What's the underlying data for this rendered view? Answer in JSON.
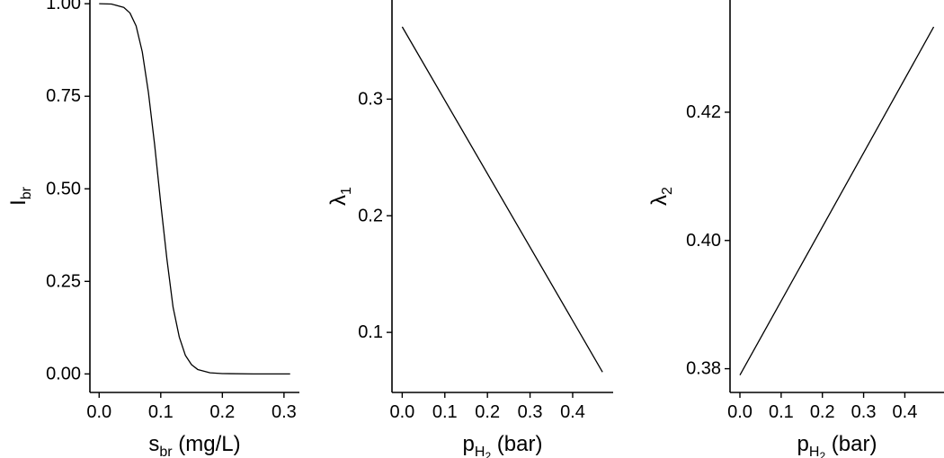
{
  "chart_data": [
    {
      "type": "line",
      "xlabel": {
        "main": "s",
        "sub": "br",
        "unit": " (mg/L)"
      },
      "ylabel": {
        "main": "I",
        "sub": "br"
      },
      "xlim": [
        -0.015,
        0.325
      ],
      "ylim": [
        -0.05,
        1.01
      ],
      "x_ticks": [
        0.0,
        0.1,
        0.2,
        0.3
      ],
      "x_tick_labels": [
        "0.0",
        "0.1",
        "0.2",
        "0.3"
      ],
      "y_ticks": [
        0.0,
        0.25,
        0.5,
        0.75,
        1.0
      ],
      "y_tick_labels": [
        "0.00",
        "0.25",
        "0.50",
        "0.75",
        "1.00"
      ],
      "grid": false,
      "series": [
        {
          "color": "#000000",
          "x": [
            0.0,
            0.02,
            0.04,
            0.05,
            0.06,
            0.07,
            0.08,
            0.09,
            0.1,
            0.11,
            0.12,
            0.13,
            0.14,
            0.15,
            0.16,
            0.18,
            0.2,
            0.25,
            0.31
          ],
          "y": [
            1.0,
            0.999,
            0.99,
            0.975,
            0.94,
            0.87,
            0.76,
            0.62,
            0.46,
            0.31,
            0.18,
            0.1,
            0.05,
            0.025,
            0.012,
            0.003,
            0.001,
            0.0,
            0.0
          ]
        }
      ]
    },
    {
      "type": "line",
      "xlabel": {
        "main": "p",
        "sub": "H",
        "subsub": "2",
        "unit": " (bar)"
      },
      "ylabel": {
        "main": "λ",
        "sub": "1"
      },
      "xlim": [
        -0.024,
        0.495
      ],
      "ylim": [
        0.0485,
        0.385
      ],
      "x_ticks": [
        0.0,
        0.1,
        0.2,
        0.3,
        0.4
      ],
      "x_tick_labels": [
        "0.0",
        "0.1",
        "0.2",
        "0.3",
        "0.4"
      ],
      "y_ticks": [
        0.1,
        0.2,
        0.3
      ],
      "y_tick_labels": [
        "0.1",
        "0.2",
        "0.3"
      ],
      "grid": false,
      "series": [
        {
          "color": "#000000",
          "x": [
            0.0,
            0.47
          ],
          "y": [
            0.362,
            0.066
          ]
        }
      ]
    },
    {
      "type": "line",
      "xlabel": {
        "main": "p",
        "sub": "H",
        "subsub": "2",
        "unit": " (bar)"
      },
      "ylabel": {
        "main": "λ",
        "sub": "2"
      },
      "xlim": [
        -0.024,
        0.495
      ],
      "ylim": [
        0.3763,
        0.4375
      ],
      "x_ticks": [
        0.0,
        0.1,
        0.2,
        0.3,
        0.4
      ],
      "x_tick_labels": [
        "0.0",
        "0.1",
        "0.2",
        "0.3",
        "0.4"
      ],
      "y_ticks": [
        0.38,
        0.4,
        0.42
      ],
      "y_tick_labels": [
        "0.38",
        "0.40",
        "0.42"
      ],
      "grid": false,
      "series": [
        {
          "color": "#000000",
          "x": [
            0.0,
            0.47
          ],
          "y": [
            0.379,
            0.4333
          ]
        }
      ]
    }
  ]
}
